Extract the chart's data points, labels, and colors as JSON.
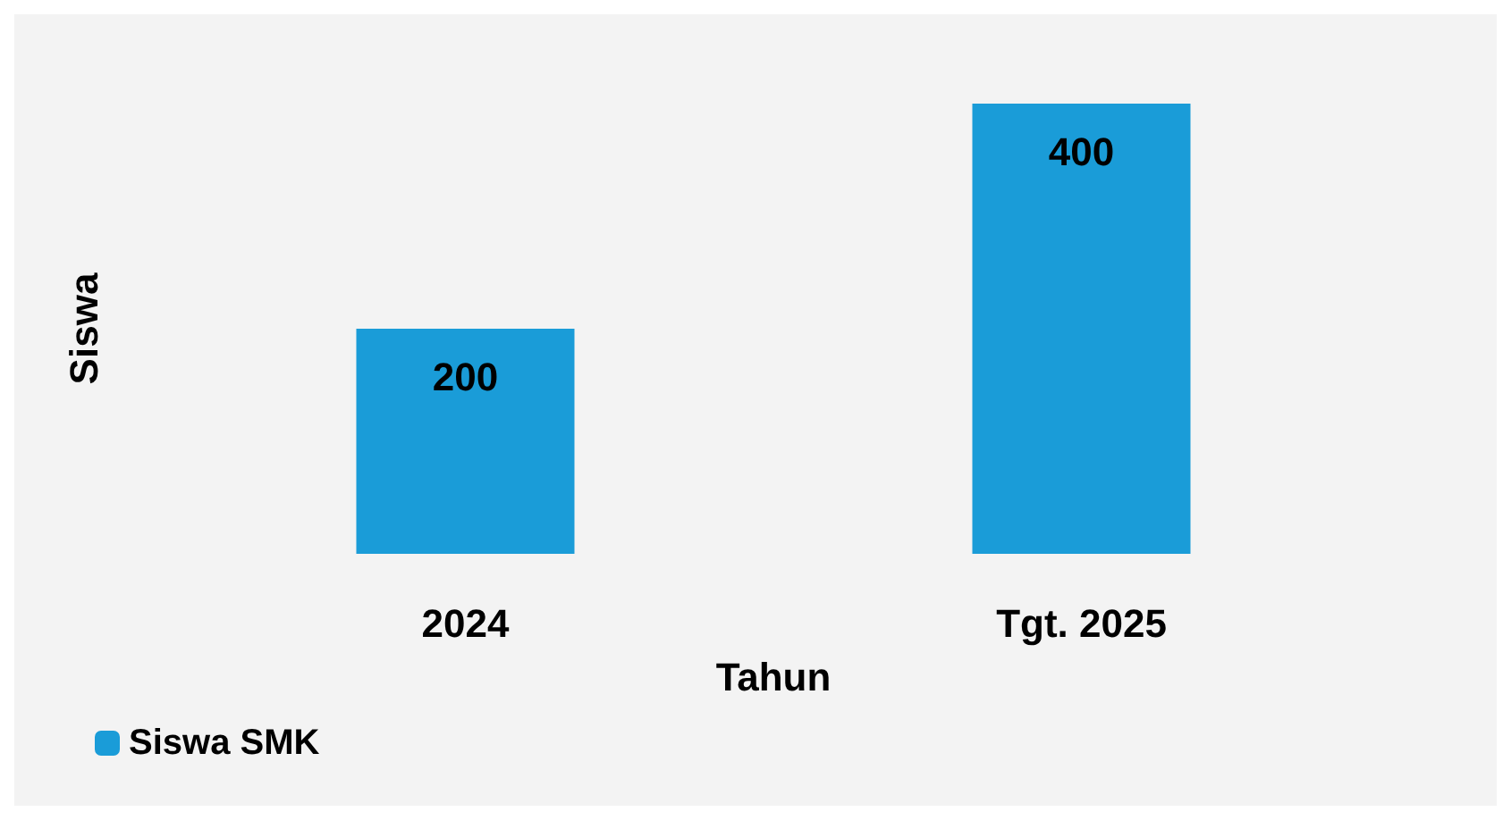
{
  "chart_data": {
    "type": "bar",
    "categories": [
      "2024",
      "Tgt. 2025"
    ],
    "xlabel": "Tahun",
    "ylabel": "Siswa",
    "series": [
      {
        "name": "Siswa SMK",
        "color": "#1a9cd8",
        "values": [
          200,
          400
        ]
      }
    ],
    "data_labels": true,
    "legend": "bottom left",
    "grid": false
  }
}
